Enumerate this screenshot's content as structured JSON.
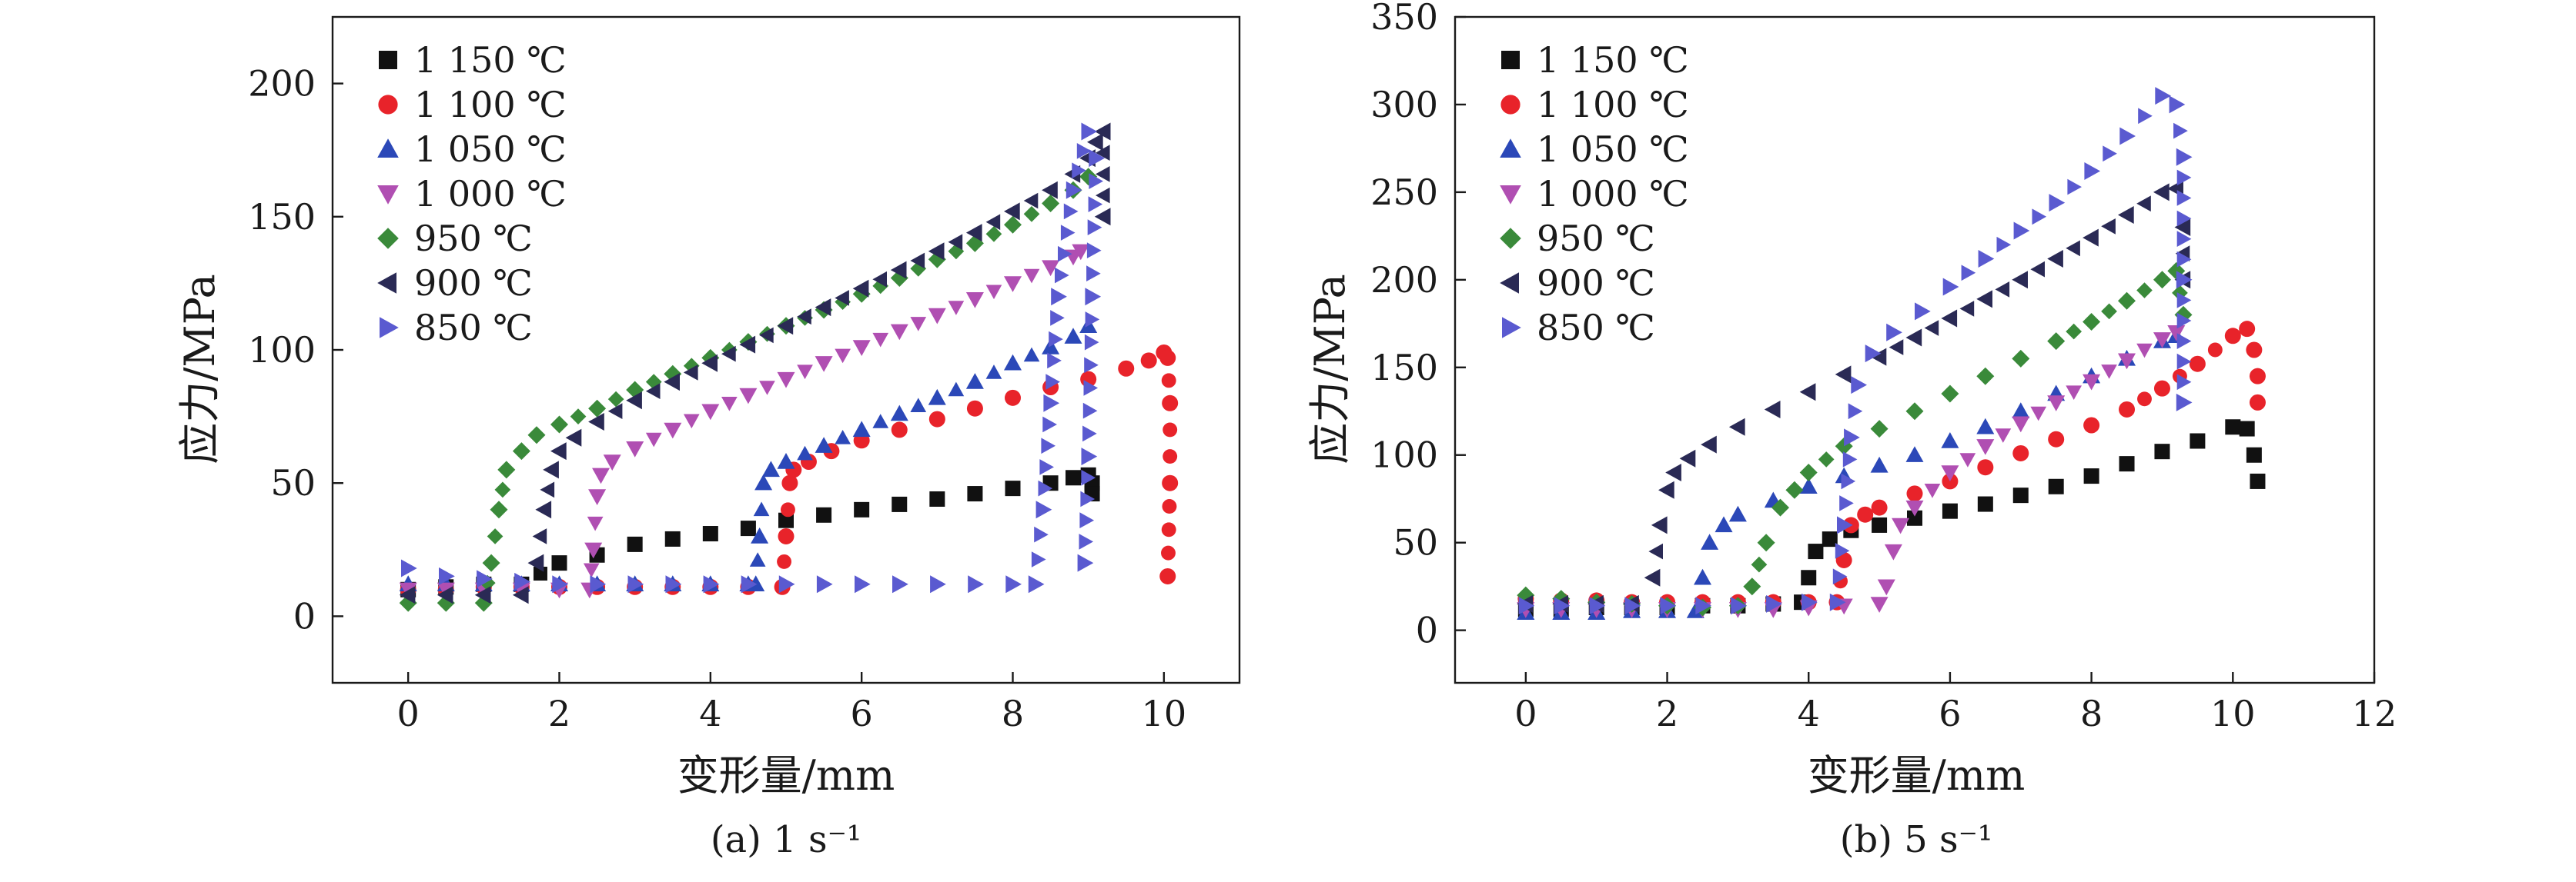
{
  "chart_data": [
    {
      "type": "scatter",
      "caption": "(a) 1 s⁻¹",
      "xlabel": "变形量/mm",
      "ylabel": "应力/MPa",
      "xlim": [
        -1,
        11
      ],
      "ylim": [
        -25,
        225
      ],
      "xticks": [
        0,
        2,
        4,
        6,
        8,
        10
      ],
      "yticks": [
        0,
        50,
        100,
        150,
        200
      ],
      "legend_position": "top-left",
      "series": [
        {
          "name": "1 150 ℃",
          "marker": "square",
          "color": "#111111",
          "x": [
            0,
            0.5,
            1,
            1.5,
            2,
            2.5,
            3,
            3.5,
            4,
            4.5,
            5,
            5.5,
            6,
            6.5,
            7,
            7.5,
            8,
            8.5,
            8.8,
            9.0,
            9.05,
            9.05
          ],
          "y": [
            10,
            11,
            12,
            12,
            20,
            23,
            27,
            29,
            31,
            33,
            36,
            38,
            40,
            42,
            44,
            46,
            48,
            50,
            52,
            53,
            50,
            46
          ]
        },
        {
          "name": "1 100 ℃",
          "marker": "circle",
          "color": "#e8232a",
          "x": [
            0,
            0.5,
            1,
            1.5,
            2,
            2.5,
            3,
            3.5,
            4,
            4.5,
            4.95,
            5.0,
            5.05,
            5.1,
            5.3,
            5.6,
            6,
            6.5,
            7,
            7.5,
            8,
            8.5,
            9,
            9.5,
            9.8,
            10.0,
            10.05,
            10.08,
            10.08,
            10.05
          ],
          "y": [
            10,
            10,
            11,
            11,
            11,
            11,
            11,
            11,
            11,
            11,
            11,
            30,
            50,
            55,
            58,
            62,
            66,
            70,
            74,
            78,
            82,
            86,
            89,
            93,
            96,
            99,
            97,
            80,
            50,
            15
          ]
        },
        {
          "name": "1 050 ℃",
          "marker": "triangle-up",
          "color": "#2b48b8",
          "x": [
            0,
            0.5,
            1,
            1.5,
            2,
            2.5,
            3,
            3.5,
            4,
            4.5,
            4.6,
            4.65,
            4.7,
            4.8,
            5,
            5.5,
            6,
            6.5,
            7,
            7.5,
            8,
            8.5,
            8.8,
            9.0
          ],
          "y": [
            12,
            12,
            12,
            12,
            12,
            12,
            12,
            12,
            12,
            12,
            12,
            30,
            50,
            55,
            58,
            64,
            70,
            76,
            82,
            88,
            95,
            101,
            105,
            109
          ]
        },
        {
          "name": "1 000 ℃",
          "marker": "triangle-down",
          "color": "#b04fb2",
          "x": [
            0,
            0.5,
            1,
            1.5,
            2,
            2.4,
            2.45,
            2.5,
            2.55,
            2.7,
            3,
            3.5,
            4,
            4.5,
            5,
            5.5,
            6,
            6.5,
            7,
            7.5,
            8,
            8.5,
            8.8,
            8.9
          ],
          "y": [
            10,
            10,
            10,
            10,
            10,
            10,
            25,
            45,
            53,
            58,
            63,
            70,
            77,
            83,
            89,
            95,
            101,
            107,
            113,
            119,
            125,
            131,
            135,
            137
          ]
        },
        {
          "name": "950 ℃",
          "marker": "diamond",
          "color": "#3a8a3a",
          "x": [
            0,
            0.5,
            1,
            1.1,
            1.2,
            1.3,
            1.5,
            1.7,
            2,
            2.5,
            3,
            3.5,
            4,
            4.5,
            5,
            5.5,
            6,
            6.5,
            7,
            7.5,
            8,
            8.5,
            8.8,
            9.0
          ],
          "y": [
            5,
            5,
            5,
            20,
            40,
            55,
            62,
            68,
            72,
            78,
            85,
            91,
            97,
            103,
            109,
            115,
            121,
            127,
            134,
            140,
            147,
            155,
            160,
            165
          ]
        },
        {
          "name": "900 ℃",
          "marker": "triangle-left",
          "color": "#2a2a55",
          "x": [
            0,
            0.5,
            1,
            1.5,
            1.7,
            1.8,
            1.9,
            2,
            2.2,
            2.5,
            3,
            3.5,
            4,
            4.5,
            5,
            5.5,
            6,
            6.5,
            7,
            7.5,
            8,
            8.5,
            8.8,
            9.0,
            9.1,
            9.2,
            9.2
          ],
          "y": [
            8,
            8,
            8,
            8,
            20,
            40,
            55,
            62,
            67,
            73,
            81,
            88,
            95,
            102,
            109,
            116,
            123,
            130,
            137,
            144,
            152,
            160,
            166,
            172,
            178,
            182,
            150
          ]
        },
        {
          "name": "850 ℃",
          "marker": "triangle-right",
          "color": "#5a5ad0",
          "x": [
            0,
            0.5,
            1,
            1.5,
            2,
            2.5,
            3,
            3.5,
            4,
            4.5,
            5,
            5.5,
            6,
            6.5,
            7,
            7.5,
            8,
            8.3,
            8.4,
            8.5,
            8.6,
            8.8,
            9.0,
            9.1,
            9.05,
            9.0,
            8.95
          ],
          "y": [
            18,
            15,
            14,
            13,
            12,
            12,
            12,
            12,
            12,
            12,
            12,
            12,
            12,
            12,
            12,
            12,
            12,
            12,
            40,
            80,
            120,
            160,
            182,
            172,
            120,
            60,
            20
          ]
        }
      ]
    },
    {
      "type": "scatter",
      "caption": "(b) 5 s⁻¹",
      "xlabel": "变形量/mm",
      "ylabel": "应力/MPa",
      "xlim": [
        -1,
        12
      ],
      "ylim": [
        -30,
        350
      ],
      "xticks": [
        0,
        2,
        4,
        6,
        8,
        10,
        12
      ],
      "yticks": [
        0,
        50,
        100,
        150,
        200,
        250,
        300,
        350
      ],
      "legend_position": "top-left",
      "series": [
        {
          "name": "1 150 ℃",
          "marker": "square",
          "color": "#111111",
          "x": [
            0,
            0.5,
            1,
            1.5,
            2,
            2.5,
            3,
            3.5,
            3.9,
            4.0,
            4.1,
            4.3,
            4.6,
            5,
            5.5,
            6,
            6.5,
            7,
            7.5,
            8,
            8.5,
            9,
            9.5,
            10.0,
            10.2,
            10.3,
            10.35
          ],
          "y": [
            12,
            12,
            13,
            13,
            13,
            14,
            14,
            15,
            16,
            30,
            45,
            52,
            57,
            60,
            64,
            68,
            72,
            77,
            82,
            88,
            95,
            102,
            108,
            116,
            115,
            100,
            85
          ]
        },
        {
          "name": "1 100 ℃",
          "marker": "circle",
          "color": "#e8232a",
          "x": [
            0,
            0.5,
            1,
            1.5,
            2,
            2.5,
            3,
            3.5,
            4,
            4.4,
            4.5,
            4.6,
            4.8,
            5,
            5.5,
            6,
            6.5,
            7,
            7.5,
            8,
            8.5,
            9,
            9.5,
            10.0,
            10.2,
            10.3,
            10.35,
            10.35
          ],
          "y": [
            18,
            17,
            17,
            16,
            16,
            16,
            16,
            16,
            16,
            16,
            40,
            60,
            66,
            70,
            78,
            85,
            93,
            101,
            109,
            117,
            126,
            138,
            152,
            168,
            172,
            160,
            145,
            130
          ]
        },
        {
          "name": "1 050 ℃",
          "marker": "triangle-up",
          "color": "#2b48b8",
          "x": [
            0,
            0.5,
            1,
            1.5,
            2,
            2.4,
            2.5,
            2.6,
            2.8,
            3,
            3.5,
            4,
            4.5,
            5,
            5.5,
            6,
            6.5,
            7,
            7.5,
            8,
            8.5,
            9,
            9.2
          ],
          "y": [
            10,
            10,
            10,
            11,
            11,
            11,
            30,
            50,
            60,
            66,
            74,
            82,
            88,
            94,
            100,
            108,
            116,
            125,
            135,
            145,
            155,
            165,
            168
          ]
        },
        {
          "name": "1 000 ℃",
          "marker": "triangle-down",
          "color": "#b04fb2",
          "x": [
            0,
            0.5,
            1,
            1.5,
            2,
            2.5,
            3,
            3.5,
            4,
            4.5,
            5,
            5.1,
            5.2,
            5.3,
            5.5,
            6,
            6.5,
            7,
            7.5,
            8,
            8.5,
            9,
            9.2
          ],
          "y": [
            12,
            12,
            12,
            12,
            12,
            12,
            12,
            12,
            13,
            14,
            15,
            25,
            45,
            60,
            70,
            90,
            105,
            118,
            130,
            142,
            154,
            166,
            170
          ]
        },
        {
          "name": "950 ℃",
          "marker": "diamond",
          "color": "#3a8a3a",
          "x": [
            0,
            0.5,
            1,
            1.5,
            2,
            2.5,
            3,
            3.2,
            3.4,
            3.6,
            3.8,
            4,
            4.5,
            5,
            5.5,
            6,
            6.5,
            7,
            7.5,
            8,
            8.5,
            9,
            9.2,
            9.3
          ],
          "y": [
            20,
            18,
            16,
            15,
            14,
            13,
            14,
            25,
            50,
            70,
            80,
            90,
            105,
            115,
            125,
            135,
            145,
            155,
            165,
            176,
            188,
            200,
            205,
            180
          ]
        },
        {
          "name": "900 ℃",
          "marker": "triangle-left",
          "color": "#2a2a55",
          "x": [
            0,
            0.5,
            1,
            1.5,
            1.8,
            1.9,
            2.0,
            2.1,
            2.3,
            2.6,
            3,
            3.5,
            4,
            4.5,
            5,
            5.5,
            6,
            6.5,
            7,
            7.5,
            8,
            8.5,
            9,
            9.2,
            9.3,
            9.3
          ],
          "y": [
            15,
            15,
            15,
            15,
            30,
            60,
            80,
            90,
            98,
            106,
            116,
            126,
            136,
            146,
            156,
            167,
            178,
            189,
            200,
            212,
            224,
            237,
            250,
            252,
            230,
            200
          ]
        },
        {
          "name": "850 ℃",
          "marker": "triangle-right",
          "color": "#5a5ad0",
          "x": [
            0,
            0.5,
            1,
            1.5,
            2,
            2.5,
            3,
            3.5,
            4,
            4.4,
            4.5,
            4.6,
            4.7,
            4.9,
            5.2,
            5.6,
            6,
            6.5,
            7,
            7.5,
            8,
            8.5,
            9.0,
            9.2,
            9.3,
            9.3,
            9.3
          ],
          "y": [
            14,
            14,
            14,
            14,
            14,
            14,
            14,
            15,
            16,
            16,
            60,
            110,
            140,
            158,
            170,
            182,
            196,
            212,
            228,
            244,
            262,
            282,
            305,
            300,
            270,
            200,
            130
          ]
        }
      ]
    }
  ]
}
